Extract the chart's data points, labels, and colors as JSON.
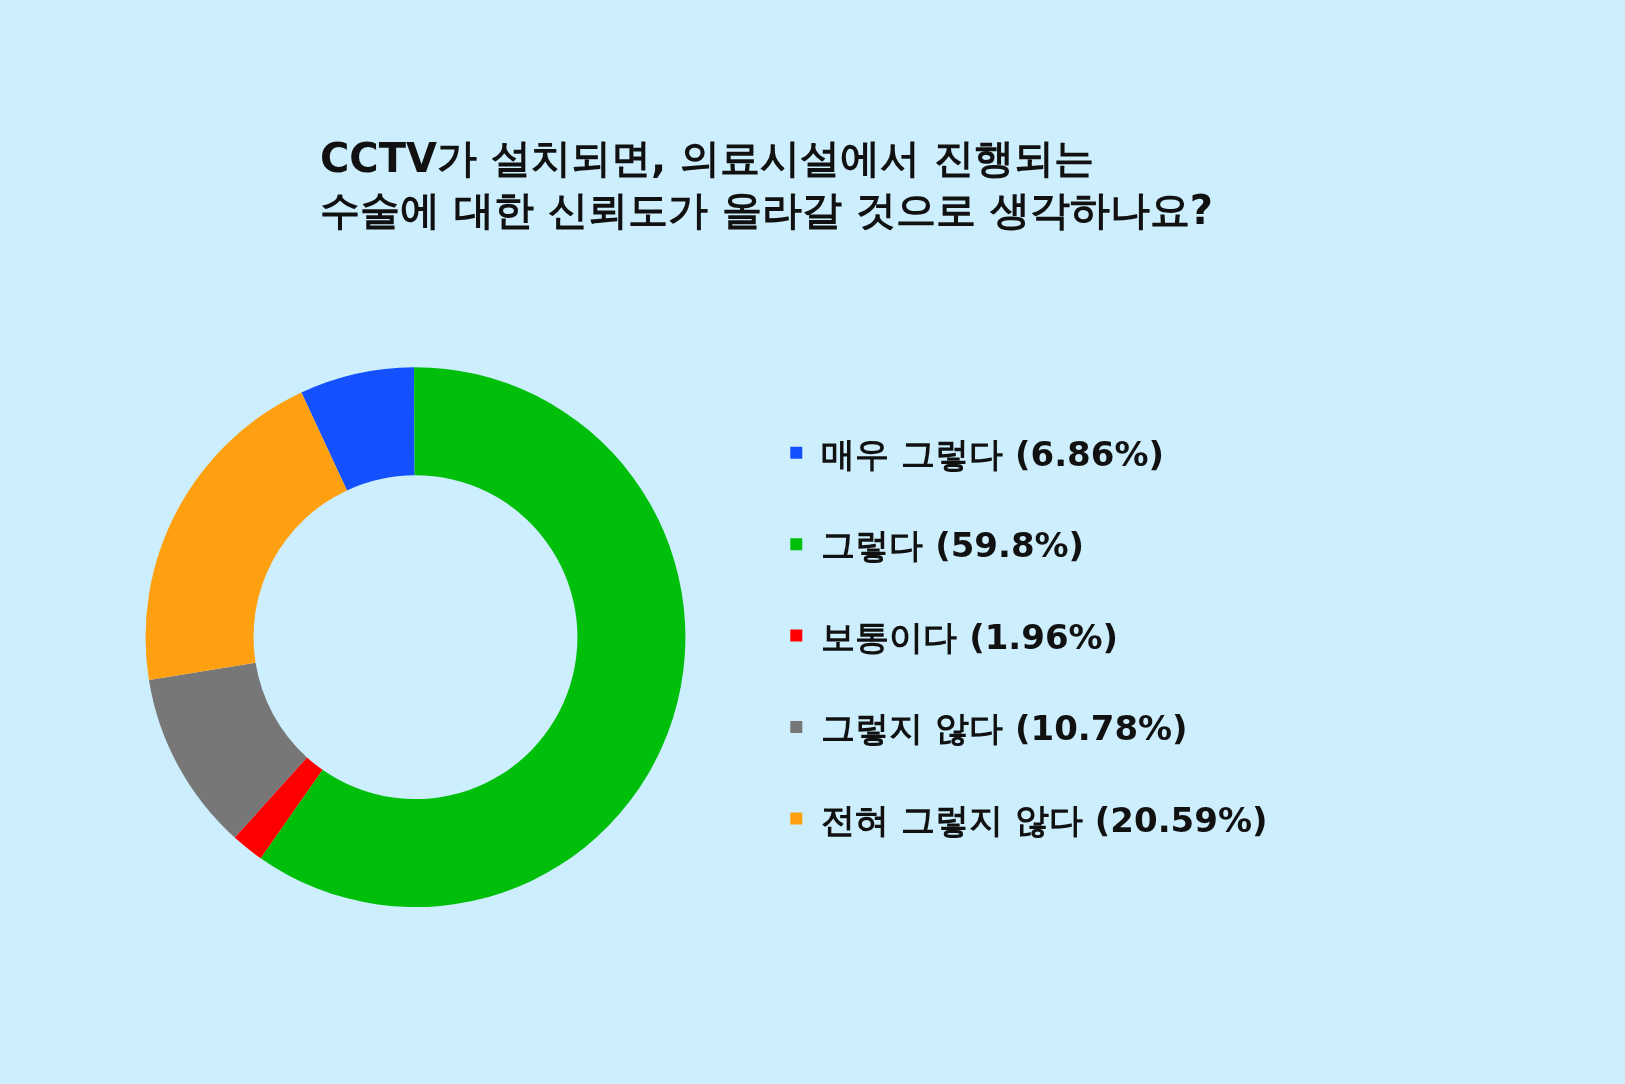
{
  "chart_data": {
    "type": "donut",
    "title": "CCTV가 설치되면, 의료시설에서 진행되는\n수술에 대한 신뢰도가 올라갈 것으로 생각하나요?",
    "categories": [
      "매우 그렇다 (6.86%)",
      "그렇다 (59.8%)",
      "보통이다 (1.96%)",
      "그렇지 않다 (10.78%)",
      "전혀 그렇지 않다 (20.59%)"
    ],
    "values": [
      6.86,
      59.8,
      1.96,
      10.78,
      20.59
    ],
    "colors": [
      "#1550ff",
      "#00bf0b",
      "#ff0000",
      "#777777",
      "#ffa010"
    ],
    "legend": "right"
  }
}
